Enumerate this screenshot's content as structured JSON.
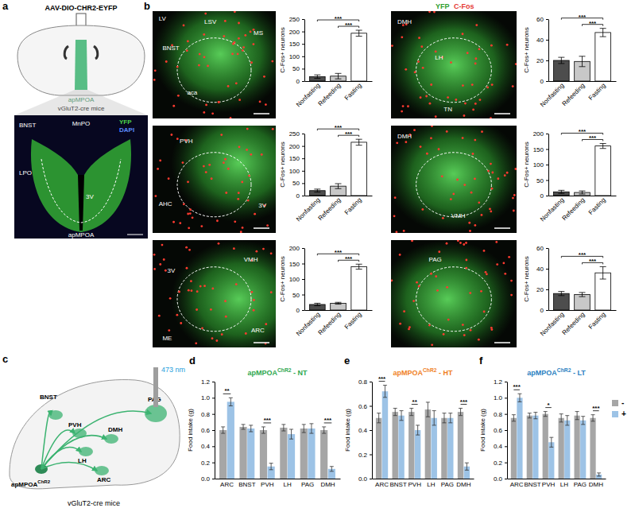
{
  "figure": {
    "letters": [
      "a",
      "b",
      "c",
      "d",
      "e",
      "f"
    ],
    "panel_a": {
      "title": "AAV-DIO-CHR2-EYFP",
      "region": "apMPOA",
      "mouse": "vGluT2-cre mice",
      "image_labels": [
        "BNST",
        "MnPO",
        "LPO",
        "3V",
        "apMPOA"
      ],
      "stain": [
        "YFP",
        "DAPI"
      ]
    },
    "panel_b": {
      "stain": [
        "YFP",
        "C-Fos"
      ],
      "images": [
        [
          "LV",
          "LSV",
          "MS",
          "BNST",
          "aca"
        ],
        [
          "DMH",
          "LH",
          "TN"
        ],
        [
          "PVH",
          "AHC",
          "3V"
        ],
        [
          "DMH",
          "VMH"
        ],
        [
          "3V",
          "VMH",
          "ME",
          "ARC"
        ],
        [
          "PAG"
        ]
      ]
    },
    "panel_c": {
      "regions": [
        "BNST",
        "PVH",
        "DMH",
        "LH",
        "PAG",
        "ARC"
      ],
      "source": [
        "apMPOA",
        "ChR2"
      ],
      "mouse": "vGluT2-cre mice",
      "light": "473 nm"
    }
  },
  "chart_data": [
    {
      "type": "bar",
      "categories": [
        "Nonfasting",
        "Refeeding",
        "Fasting"
      ],
      "values": [
        18,
        20,
        193
      ],
      "errors": [
        7,
        11,
        12
      ],
      "colors": [
        "#4d4d4d",
        "#c8c8c8",
        "#ffffff"
      ],
      "ylim": [
        0,
        250
      ],
      "yticks": [
        0,
        50,
        100,
        150,
        200,
        250
      ],
      "ylabel": "C-Fos+ neurons",
      "significance": [
        {
          "label": "***",
          "between": [
            "Nonfasting",
            "Fasting"
          ]
        },
        {
          "label": "***",
          "between": [
            "Refeeding",
            "Fasting"
          ]
        }
      ]
    },
    {
      "type": "bar",
      "categories": [
        "Nonfasting",
        "Refeeding",
        "Fasting"
      ],
      "values": [
        20,
        19,
        47
      ],
      "errors": [
        3,
        5,
        4
      ],
      "colors": [
        "#4d4d4d",
        "#c8c8c8",
        "#ffffff"
      ],
      "ylim": [
        0,
        60
      ],
      "yticks": [
        0,
        20,
        40,
        60
      ],
      "ylabel": "C-Fos+ neurons",
      "significance": [
        {
          "label": "***",
          "between": [
            "Nonfasting",
            "Fasting"
          ]
        },
        {
          "label": "***",
          "between": [
            "Refeeding",
            "Fasting"
          ]
        }
      ]
    },
    {
      "type": "bar",
      "categories": [
        "Nonfasting",
        "Refeeding",
        "Fasting"
      ],
      "values": [
        20,
        38,
        215
      ],
      "errors": [
        6,
        10,
        12
      ],
      "colors": [
        "#4d4d4d",
        "#c8c8c8",
        "#ffffff"
      ],
      "ylim": [
        0,
        250
      ],
      "yticks": [
        0,
        50,
        100,
        150,
        200,
        250
      ],
      "ylabel": "C-Fos+ neurons",
      "significance": [
        {
          "label": "***",
          "between": [
            "Nonfasting",
            "Fasting"
          ]
        },
        {
          "label": "***",
          "between": [
            "Refeeding",
            "Fasting"
          ]
        }
      ]
    },
    {
      "type": "bar",
      "categories": [
        "Nonfasting",
        "Refeeding",
        "Fasting"
      ],
      "values": [
        12,
        10,
        160
      ],
      "errors": [
        5,
        5,
        8
      ],
      "colors": [
        "#4d4d4d",
        "#c8c8c8",
        "#ffffff"
      ],
      "ylim": [
        0,
        200
      ],
      "yticks": [
        0,
        50,
        100,
        150,
        200
      ],
      "ylabel": "C-Fos+ neurons",
      "significance": [
        {
          "label": "***",
          "between": [
            "Nonfasting",
            "Fasting"
          ]
        },
        {
          "label": "***",
          "between": [
            "Refeeding",
            "Fasting"
          ]
        }
      ]
    },
    {
      "type": "bar",
      "categories": [
        "Nonfasting",
        "Refeeding",
        "Fasting"
      ],
      "values": [
        18,
        22,
        140
      ],
      "errors": [
        4,
        3,
        8
      ],
      "colors": [
        "#4d4d4d",
        "#c8c8c8",
        "#ffffff"
      ],
      "ylim": [
        0,
        200
      ],
      "yticks": [
        0,
        50,
        100,
        150,
        200
      ],
      "ylabel": "C-Fos+ neurons",
      "significance": [
        {
          "label": "***",
          "between": [
            "Nonfasting",
            "Fasting"
          ]
        },
        {
          "label": "***",
          "between": [
            "Refeeding",
            "Fasting"
          ]
        }
      ]
    },
    {
      "type": "bar",
      "categories": [
        "Nonfasting",
        "Refeeding",
        "Fasting"
      ],
      "values": [
        16,
        15,
        36
      ],
      "errors": [
        2,
        2,
        6
      ],
      "colors": [
        "#4d4d4d",
        "#c8c8c8",
        "#ffffff"
      ],
      "ylim": [
        0,
        60
      ],
      "yticks": [
        0,
        20,
        40,
        60
      ],
      "ylabel": "C-Fos+ neurons",
      "significance": [
        {
          "label": "***",
          "between": [
            "Nonfasting",
            "Fasting"
          ]
        },
        {
          "label": "***",
          "between": [
            "Refeeding",
            "Fasting"
          ]
        }
      ]
    },
    {
      "type": "bar",
      "title_parts": [
        "apMPOA",
        "ChR2",
        " - NT"
      ],
      "categories": [
        "ARC",
        "BNST",
        "PVH",
        "LH",
        "PAG",
        "DMH"
      ],
      "series": [
        {
          "name": "-",
          "color": "#a6a6a6",
          "values": [
            0.6,
            0.64,
            0.6,
            0.63,
            0.62,
            0.6
          ],
          "errors": [
            0.04,
            0.03,
            0.04,
            0.04,
            0.05,
            0.04
          ]
        },
        {
          "name": "+",
          "color": "#9dc3e6",
          "values": [
            0.95,
            0.62,
            0.15,
            0.55,
            0.62,
            0.12
          ],
          "errors": [
            0.05,
            0.04,
            0.04,
            0.06,
            0.06,
            0.03
          ]
        }
      ],
      "ylim": [
        0,
        1.2
      ],
      "yticks": [
        {
          "value": 0,
          "label": "0.0"
        },
        0.2,
        0.4,
        0.6,
        0.8,
        {
          "value": 1,
          "label": "1.0"
        },
        1.2
      ],
      "ylabel": "Food intake (g)",
      "significance": [
        {
          "label": "**",
          "category": "ARC"
        },
        {
          "label": "***",
          "category": "PVH"
        },
        {
          "label": "***",
          "category": "DMH"
        }
      ]
    },
    {
      "type": "bar",
      "title_parts": [
        "apMPOA",
        "ChR2",
        " - HT"
      ],
      "categories": [
        "ARC",
        "BNST",
        "PVH",
        "LH",
        "PAG",
        "DMH"
      ],
      "series": [
        {
          "name": "-",
          "color": "#a6a6a6",
          "values": [
            0.5,
            0.55,
            0.55,
            0.57,
            0.5,
            0.55
          ],
          "errors": [
            0.04,
            0.03,
            0.03,
            0.06,
            0.04,
            0.03
          ]
        },
        {
          "name": "+",
          "color": "#9dc3e6",
          "values": [
            0.72,
            0.52,
            0.4,
            0.5,
            0.5,
            0.1
          ],
          "errors": [
            0.05,
            0.04,
            0.04,
            0.06,
            0.04,
            0.03
          ]
        }
      ],
      "ylim": [
        0,
        0.8
      ],
      "yticks": [
        {
          "value": 0,
          "label": "0.0"
        },
        0.2,
        0.4,
        0.6,
        0.8
      ],
      "ylabel": "Food intake (g)",
      "significance": [
        {
          "label": "***",
          "category": "ARC"
        },
        {
          "label": "**",
          "category": "PVH"
        },
        {
          "label": "***",
          "category": "DMH"
        }
      ]
    },
    {
      "type": "bar",
      "title_parts": [
        "apMPOA",
        "ChR2",
        " - LT"
      ],
      "categories": [
        "ARC",
        "BNST",
        "PVH",
        "LH",
        "PAG",
        "DMH"
      ],
      "series": [
        {
          "name": "-",
          "color": "#a6a6a6",
          "values": [
            0.75,
            0.78,
            0.8,
            0.75,
            0.78,
            0.75
          ],
          "errors": [
            0.04,
            0.03,
            0.03,
            0.05,
            0.05,
            0.04
          ]
        },
        {
          "name": "+",
          "color": "#9dc3e6",
          "values": [
            1.0,
            0.78,
            0.45,
            0.72,
            0.72,
            0.05
          ],
          "errors": [
            0.05,
            0.04,
            0.06,
            0.06,
            0.05,
            0.02
          ]
        }
      ],
      "ylim": [
        0,
        1.2
      ],
      "yticks": [
        {
          "value": 0,
          "label": "0.0"
        },
        0.2,
        0.4,
        0.6,
        0.8,
        {
          "value": 1,
          "label": "1.0"
        },
        1.2
      ],
      "ylabel": "Food intake (g)",
      "significance": [
        {
          "label": "***",
          "category": "ARC"
        },
        {
          "label": "*",
          "category": "PVH"
        },
        {
          "label": "***",
          "category": "DMH"
        }
      ],
      "legend": "right"
    }
  ]
}
